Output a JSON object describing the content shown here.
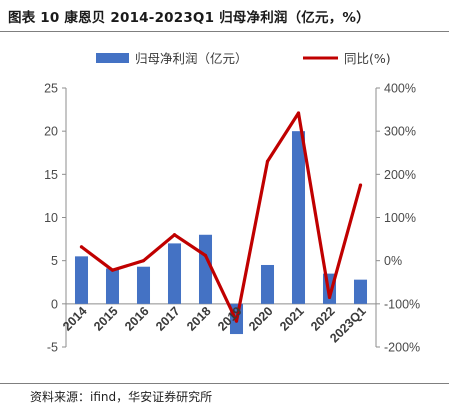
{
  "figure_title": "图表 10 康恩贝 2014-2023Q1 归母净利润（亿元，%）",
  "source": "资料来源：ifind，华安证券研究所",
  "chart_data": {
    "type": "bar",
    "title": "图表 10 康恩贝 2014-2023Q1 归母净利润（亿元，%）",
    "categories": [
      "2014",
      "2015",
      "2016",
      "2017",
      "2018",
      "2019",
      "2020",
      "2021",
      "2022",
      "2023Q1"
    ],
    "series": [
      {
        "name": "归母净利润（亿元）",
        "type": "bar",
        "axis": "left",
        "color": "#4472c4",
        "values": [
          5.5,
          4.1,
          4.3,
          7.0,
          8.0,
          -3.5,
          4.5,
          20.0,
          3.5,
          2.8
        ]
      },
      {
        "name": "同比(%)",
        "type": "line",
        "axis": "right",
        "color": "#c00000",
        "values": [
          32,
          -22,
          0,
          60,
          12,
          -140,
          230,
          342,
          -85,
          175
        ]
      }
    ],
    "y_left": {
      "min": -5,
      "max": 25,
      "ticks": [
        "-5",
        "0",
        "5",
        "10",
        "15",
        "20",
        "25"
      ]
    },
    "y_right": {
      "min": -200,
      "max": 400,
      "ticks": [
        "-200%",
        "-100%",
        "0%",
        "100%",
        "200%",
        "300%",
        "400%"
      ]
    },
    "grid": false,
    "legend_position": "top"
  }
}
